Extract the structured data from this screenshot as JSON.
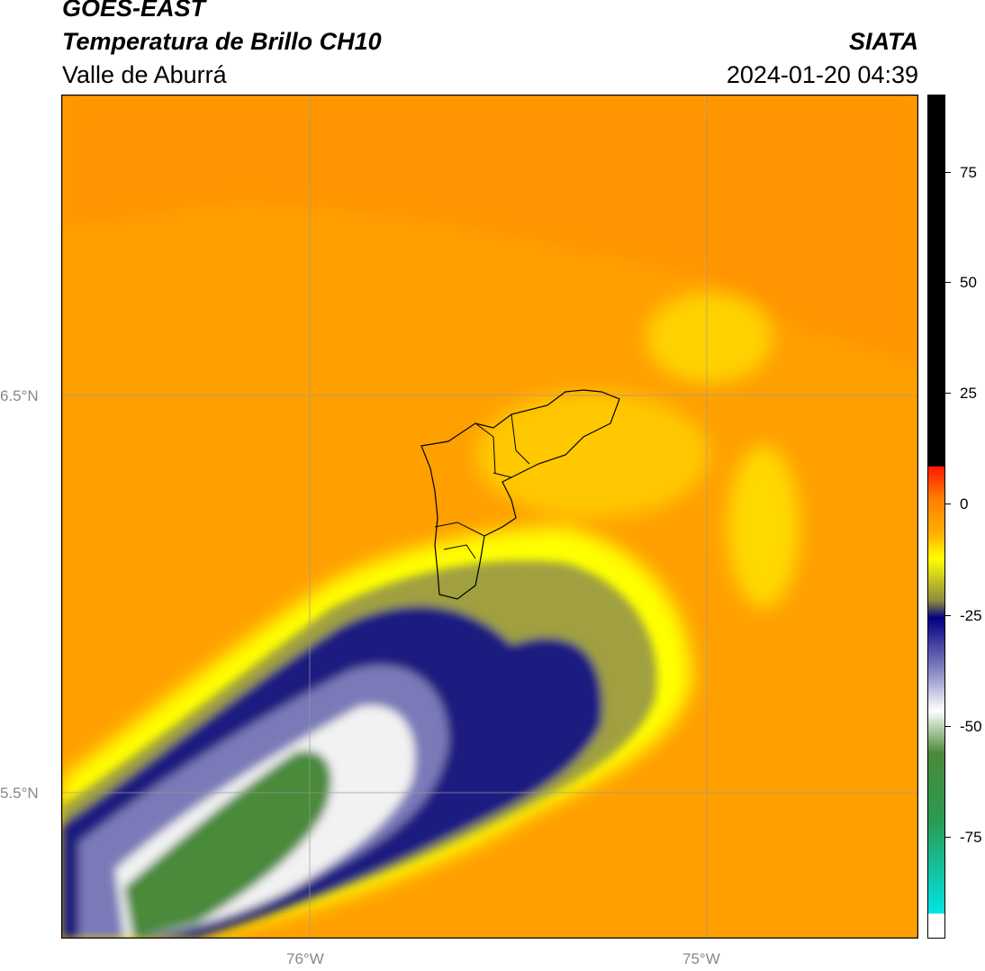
{
  "header": {
    "satellite": "GOES-EAST",
    "product": "Temperatura de Brillo CH10",
    "region": "Valle de Aburrá",
    "org": "SIATA",
    "datetime": "2024-01-20 04:39"
  },
  "map": {
    "lat_labels": [
      "6.5°N",
      "5.5°N"
    ],
    "lon_labels": [
      "76°W",
      "75°W"
    ],
    "gridlines": true
  },
  "colorbar": {
    "ticks": [
      "75",
      "50",
      "25",
      "0",
      "-25",
      "-50",
      "-75"
    ],
    "colors": {
      "black": "#000000",
      "red": "#ff1a00",
      "orange": "#ff9900",
      "yellow": "#ffff00",
      "navy": "#000080",
      "white": "#ffffff",
      "green": "#3a8a2a",
      "cyan": "#00e5e5"
    }
  }
}
